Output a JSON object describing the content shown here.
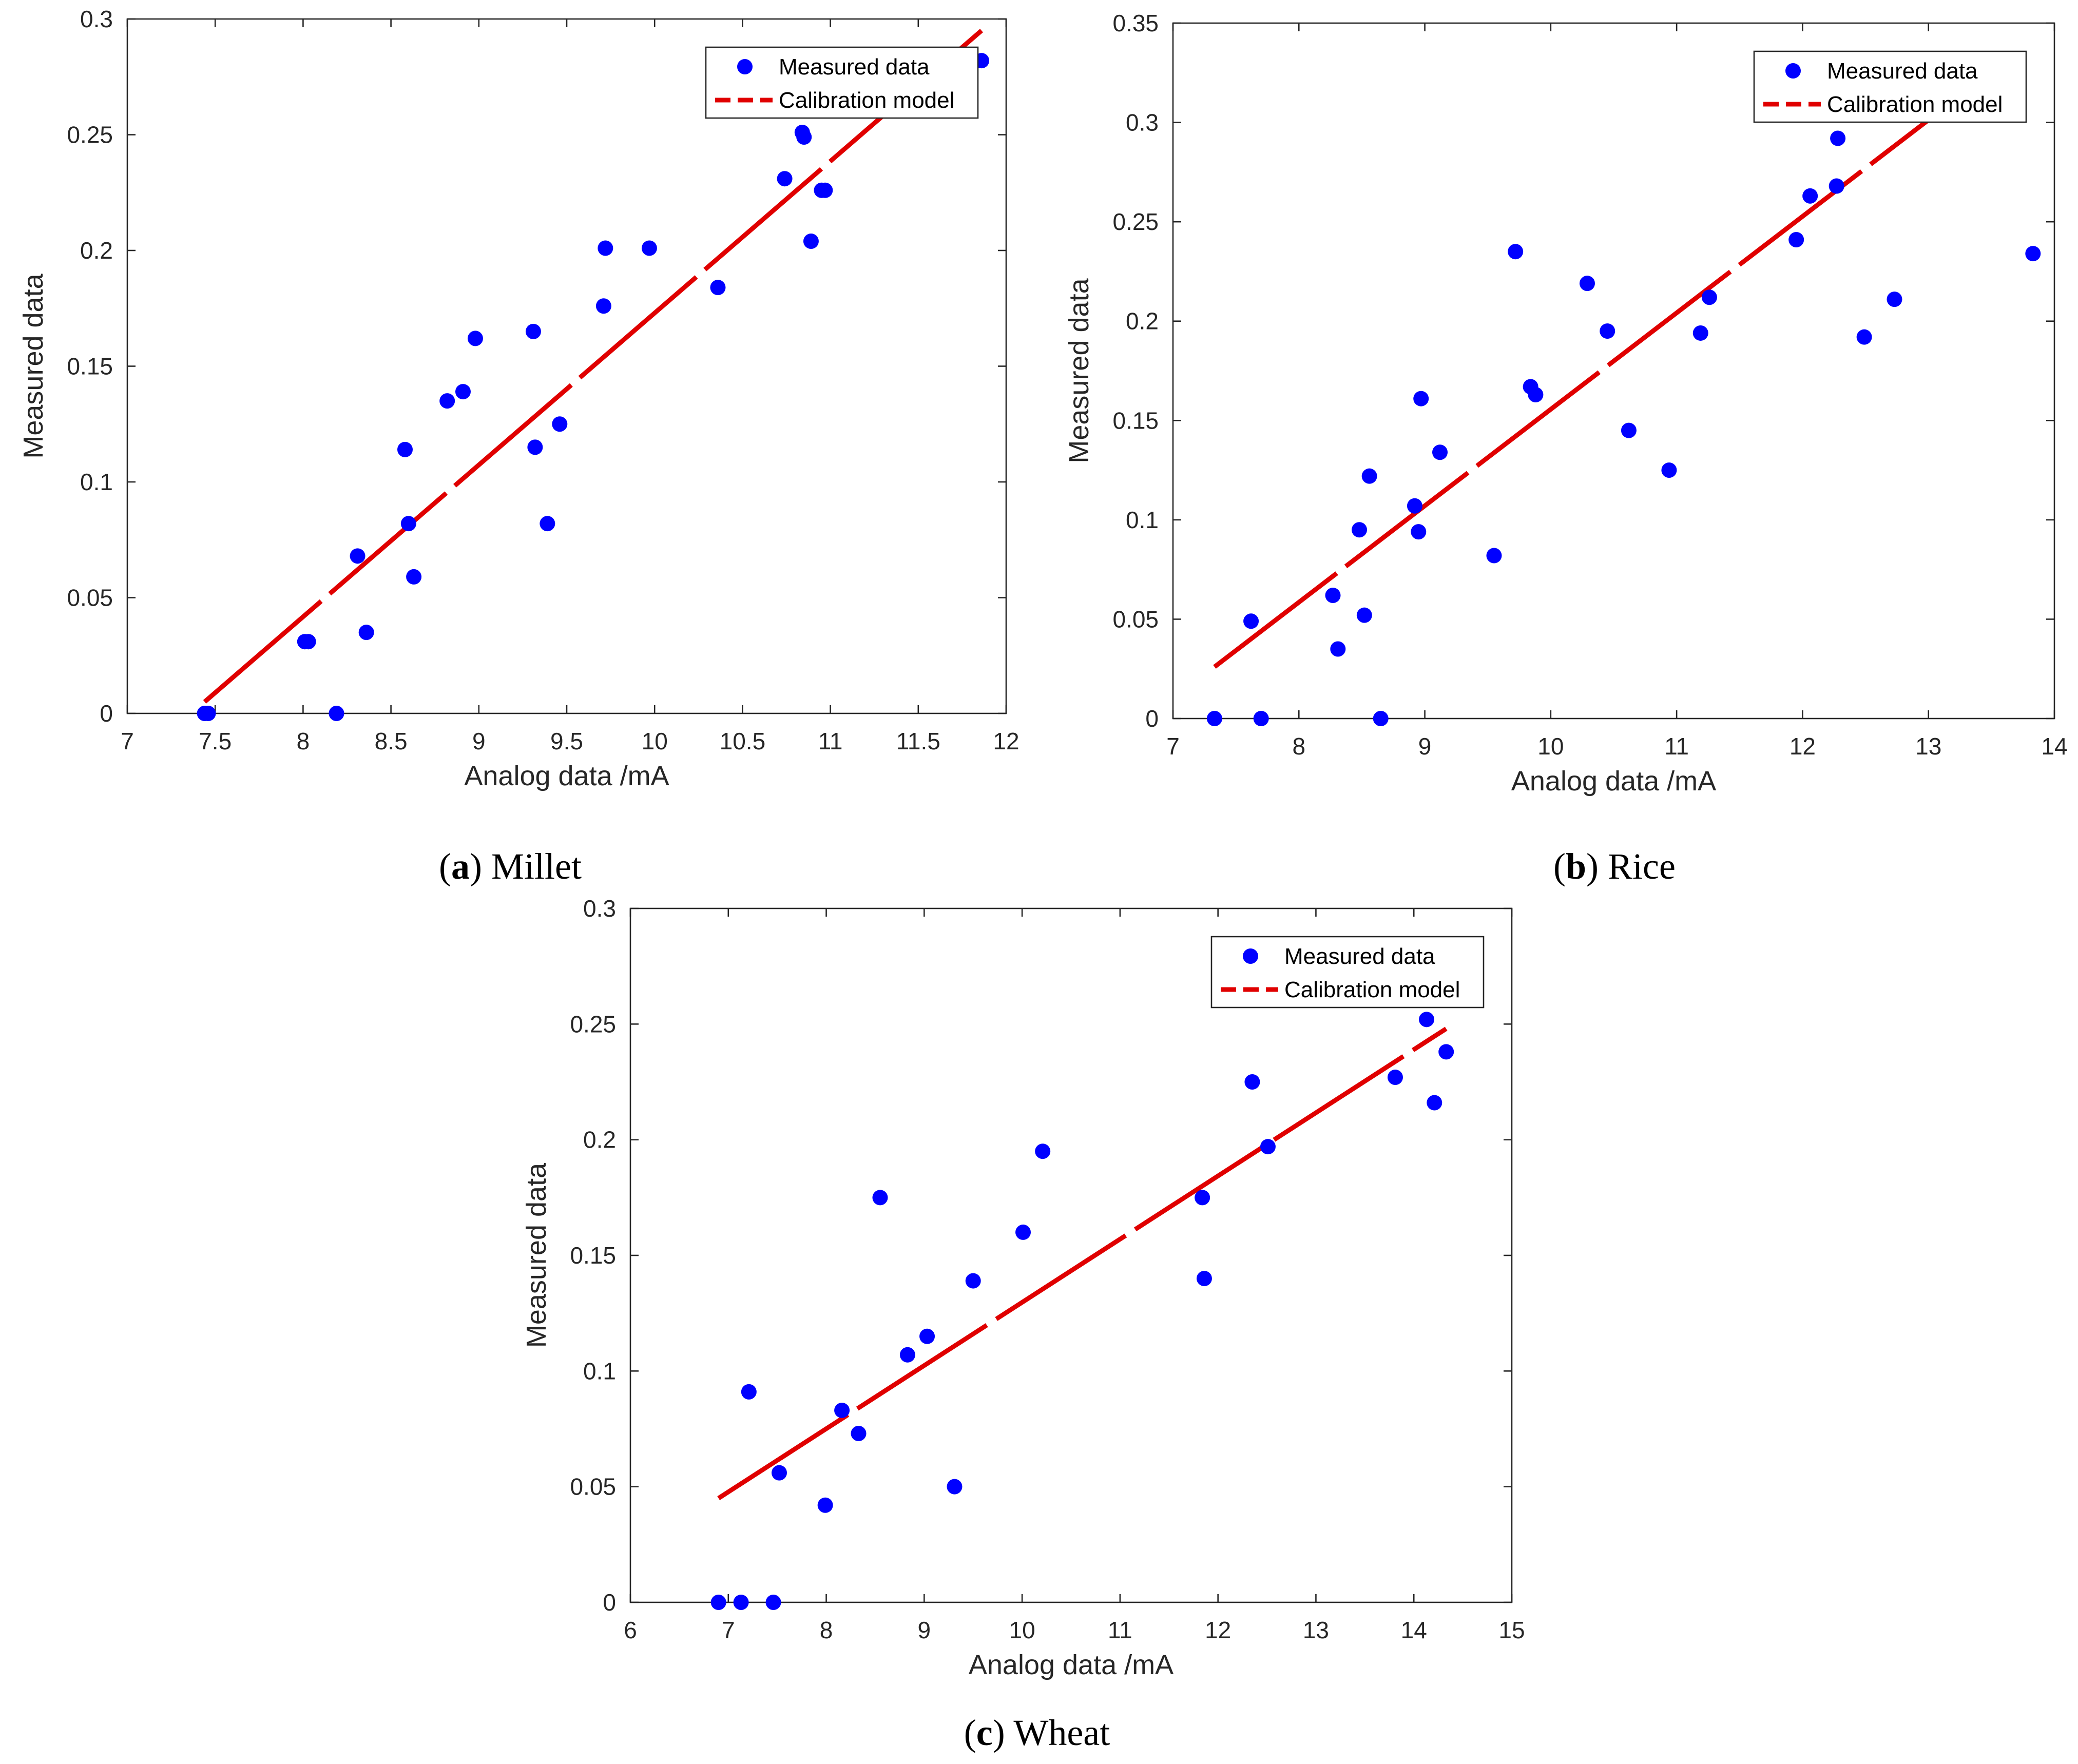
{
  "colors": {
    "points": "#0000ff",
    "model": "#e00000",
    "axis": "#262626"
  },
  "chart_data": [
    {
      "type": "scatter",
      "panel": "a",
      "caption": {
        "label": "a",
        "text": "Millet"
      },
      "xlabel": "Analog data /mA",
      "ylabel": "Measured data",
      "xlim": [
        7,
        12
      ],
      "ylim": [
        0,
        0.3
      ],
      "xticks": [
        7,
        7.5,
        8,
        8.5,
        9,
        9.5,
        10,
        10.5,
        11,
        11.5,
        12
      ],
      "yticks": [
        0,
        0.05,
        0.1,
        0.15,
        0.2,
        0.25,
        0.3
      ],
      "grid": false,
      "legend": {
        "location": "top-right",
        "entries": [
          "Measured data",
          "Calibration model"
        ]
      },
      "series": [
        {
          "name": "Measured data",
          "kind": "points",
          "x": [
            7.44,
            7.46,
            8.01,
            8.03,
            8.19,
            8.31,
            8.36,
            8.58,
            8.6,
            8.63,
            8.82,
            8.91,
            8.98,
            9.31,
            9.32,
            9.39,
            9.46,
            9.71,
            9.72,
            9.97,
            10.36,
            10.74,
            10.84,
            10.85,
            10.89,
            10.95,
            10.97,
            11.86
          ],
          "y": [
            0.0,
            0.0,
            0.031,
            0.031,
            0.0,
            0.068,
            0.035,
            0.114,
            0.082,
            0.059,
            0.135,
            0.139,
            0.162,
            0.165,
            0.115,
            0.082,
            0.125,
            0.176,
            0.201,
            0.201,
            0.184,
            0.231,
            0.251,
            0.249,
            0.204,
            0.226,
            0.226,
            0.282
          ]
        },
        {
          "name": "Calibration model",
          "kind": "line",
          "x": [
            7.44,
            11.86
          ],
          "y": [
            0.005,
            0.295
          ]
        }
      ]
    },
    {
      "type": "scatter",
      "panel": "b",
      "caption": {
        "label": "b",
        "text": "Rice"
      },
      "xlabel": "Analog data /mA",
      "ylabel": "Measured data",
      "xlim": [
        7,
        14
      ],
      "ylim": [
        0,
        0.35
      ],
      "xticks": [
        7,
        8,
        9,
        10,
        11,
        12,
        13,
        14
      ],
      "yticks": [
        0,
        0.05,
        0.1,
        0.15,
        0.2,
        0.25,
        0.3,
        0.35
      ],
      "grid": false,
      "legend": {
        "location": "top-right",
        "entries": [
          "Measured data",
          "Calibration model"
        ]
      },
      "series": [
        {
          "name": "Measured data",
          "kind": "points",
          "x": [
            7.33,
            7.62,
            7.7,
            8.27,
            8.31,
            8.48,
            8.52,
            8.56,
            8.65,
            8.92,
            8.95,
            8.97,
            9.12,
            9.55,
            9.72,
            9.84,
            9.88,
            10.29,
            10.45,
            10.62,
            10.94,
            11.19,
            11.26,
            11.95,
            12.06,
            12.27,
            12.28,
            12.49,
            12.73,
            13.83
          ],
          "y": [
            0.0,
            0.049,
            0.0,
            0.062,
            0.035,
            0.095,
            0.052,
            0.122,
            0.0,
            0.107,
            0.094,
            0.161,
            0.134,
            0.082,
            0.235,
            0.167,
            0.163,
            0.219,
            0.195,
            0.145,
            0.125,
            0.194,
            0.212,
            0.241,
            0.263,
            0.268,
            0.292,
            0.192,
            0.211,
            0.234
          ]
        },
        {
          "name": "Calibration model",
          "kind": "line",
          "x": [
            7.33,
            13.18
          ],
          "y": [
            0.026,
            0.31
          ]
        }
      ]
    },
    {
      "type": "scatter",
      "panel": "c",
      "caption": {
        "label": "c",
        "text": "Wheat"
      },
      "xlabel": "Analog data /mA",
      "ylabel": "Measured data",
      "xlim": [
        6,
        15
      ],
      "ylim": [
        0,
        0.3
      ],
      "xticks": [
        6,
        7,
        8,
        9,
        10,
        11,
        12,
        13,
        14,
        15
      ],
      "yticks": [
        0,
        0.05,
        0.1,
        0.15,
        0.2,
        0.25,
        0.3
      ],
      "grid": false,
      "legend": {
        "location": "top-right",
        "entries": [
          "Measured data",
          "Calibration model"
        ]
      },
      "series": [
        {
          "name": "Measured data",
          "kind": "points",
          "x": [
            6.9,
            7.13,
            7.21,
            7.46,
            7.52,
            7.99,
            8.16,
            8.33,
            8.55,
            8.83,
            9.03,
            9.31,
            9.5,
            10.01,
            10.21,
            11.84,
            11.86,
            12.35,
            12.51,
            13.81,
            14.13,
            14.21,
            14.33
          ],
          "y": [
            0.0,
            0.0,
            0.091,
            0.0,
            0.056,
            0.042,
            0.083,
            0.073,
            0.175,
            0.107,
            0.115,
            0.05,
            0.139,
            0.16,
            0.195,
            0.175,
            0.14,
            0.225,
            0.197,
            0.227,
            0.252,
            0.216,
            0.238
          ]
        },
        {
          "name": "Calibration model",
          "kind": "line",
          "x": [
            6.9,
            14.33
          ],
          "y": [
            0.045,
            0.248
          ]
        }
      ]
    }
  ]
}
